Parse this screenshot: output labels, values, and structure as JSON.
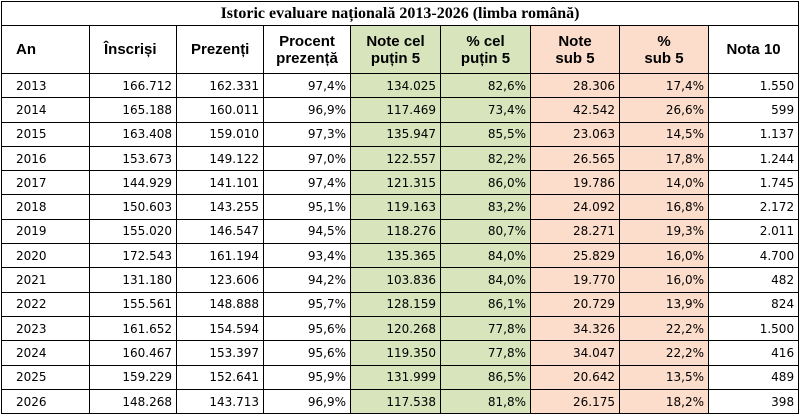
{
  "title": "Istoric evaluare națională 2013-2026 (limba română)",
  "headers": {
    "an": "An",
    "inscrisi": "Înscriși",
    "prezenti": "Prezenți",
    "procent_l1": "Procent",
    "procent_l2": "prezență",
    "note5_l1": "Note cel",
    "note5_l2": "puțin 5",
    "pct5_l1": "% cel",
    "pct5_l2": "puțin 5",
    "sub5_l1": "Note",
    "sub5_l2": "sub 5",
    "pctsub5_l1": "%",
    "pctsub5_l2": "sub 5",
    "nota10": "Nota 10"
  },
  "colors": {
    "green_highlight": "#d8e4bc",
    "pink_highlight": "#fcdcca"
  },
  "rows": [
    {
      "an": "2013",
      "inscrisi": "166.712",
      "prezenti": "162.331",
      "procent": "97,4%",
      "note5": "134.025",
      "pct5": "82,6%",
      "sub5": "28.306",
      "pctsub5": "17,4%",
      "nota10": "1.550"
    },
    {
      "an": "2014",
      "inscrisi": "165.188",
      "prezenti": "160.011",
      "procent": "96,9%",
      "note5": "117.469",
      "pct5": "73,4%",
      "sub5": "42.542",
      "pctsub5": "26,6%",
      "nota10": "599"
    },
    {
      "an": "2015",
      "inscrisi": "163.408",
      "prezenti": "159.010",
      "procent": "97,3%",
      "note5": "135.947",
      "pct5": "85,5%",
      "sub5": "23.063",
      "pctsub5": "14,5%",
      "nota10": "1.137"
    },
    {
      "an": "2016",
      "inscrisi": "153.673",
      "prezenti": "149.122",
      "procent": "97,0%",
      "note5": "122.557",
      "pct5": "82,2%",
      "sub5": "26.565",
      "pctsub5": "17,8%",
      "nota10": "1.244"
    },
    {
      "an": "2017",
      "inscrisi": "144.929",
      "prezenti": "141.101",
      "procent": "97,4%",
      "note5": "121.315",
      "pct5": "86,0%",
      "sub5": "19.786",
      "pctsub5": "14,0%",
      "nota10": "1.745"
    },
    {
      "an": "2018",
      "inscrisi": "150.603",
      "prezenti": "143.255",
      "procent": "95,1%",
      "note5": "119.163",
      "pct5": "83,2%",
      "sub5": "24.092",
      "pctsub5": "16,8%",
      "nota10": "2.172"
    },
    {
      "an": "2019",
      "inscrisi": "155.020",
      "prezenti": "146.547",
      "procent": "94,5%",
      "note5": "118.276",
      "pct5": "80,7%",
      "sub5": "28.271",
      "pctsub5": "19,3%",
      "nota10": "2.011"
    },
    {
      "an": "2020",
      "inscrisi": "172.543",
      "prezenti": "161.194",
      "procent": "93,4%",
      "note5": "135.365",
      "pct5": "84,0%",
      "sub5": "25.829",
      "pctsub5": "16,0%",
      "nota10": "4.700"
    },
    {
      "an": "2021",
      "inscrisi": "131.180",
      "prezenti": "123.606",
      "procent": "94,2%",
      "note5": "103.836",
      "pct5": "84,0%",
      "sub5": "19.770",
      "pctsub5": "16,0%",
      "nota10": "482"
    },
    {
      "an": "2022",
      "inscrisi": "155.561",
      "prezenti": "148.888",
      "procent": "95,7%",
      "note5": "128.159",
      "pct5": "86,1%",
      "sub5": "20.729",
      "pctsub5": "13,9%",
      "nota10": "824"
    },
    {
      "an": "2023",
      "inscrisi": "161.652",
      "prezenti": "154.594",
      "procent": "95,6%",
      "note5": "120.268",
      "pct5": "77,8%",
      "sub5": "34.326",
      "pctsub5": "22,2%",
      "nota10": "1.500"
    },
    {
      "an": "2024",
      "inscrisi": "160.467",
      "prezenti": "153.397",
      "procent": "95,6%",
      "note5": "119.350",
      "pct5": "77,8%",
      "sub5": "34.047",
      "pctsub5": "22,2%",
      "nota10": "416"
    },
    {
      "an": "2025",
      "inscrisi": "159.229",
      "prezenti": "152.641",
      "procent": "95,9%",
      "note5": "131.999",
      "pct5": "86,5%",
      "sub5": "20.642",
      "pctsub5": "13,5%",
      "nota10": "489"
    },
    {
      "an": "2026",
      "inscrisi": "148.268",
      "prezenti": "143.713",
      "procent": "96,9%",
      "note5": "117.538",
      "pct5": "81,8%",
      "sub5": "26.175",
      "pctsub5": "18,2%",
      "nota10": "398"
    }
  ]
}
